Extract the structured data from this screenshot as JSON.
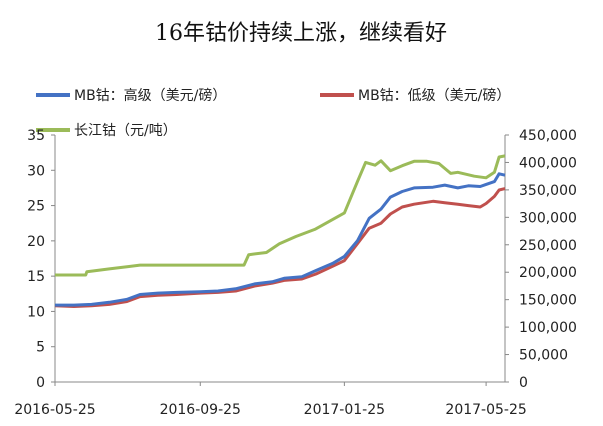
{
  "chart_data": {
    "type": "line",
    "title": "16年钴价持续上涨，继续看好",
    "x_ticks": [
      "2016-05-25",
      "2016-09-25",
      "2017-01-25",
      "2017-05-25"
    ],
    "y_left": {
      "min": 0,
      "max": 35,
      "ticks": [
        "0",
        "5",
        "10",
        "15",
        "20",
        "25",
        "30",
        "35"
      ]
    },
    "y_right": {
      "min": 0,
      "max": 450000,
      "ticks": [
        "0",
        "50,000",
        "100,000",
        "150,000",
        "200,000",
        "250,000",
        "300,000",
        "350,000",
        "400,000",
        "450,000"
      ]
    },
    "legend_placement": "top-left",
    "series": [
      {
        "name": "MB钴：高级（美元/磅）",
        "axis": "left",
        "color": "#4472C4",
        "points": [
          [
            "2016-05-25",
            10.9
          ],
          [
            "2016-06-10",
            10.9
          ],
          [
            "2016-06-25",
            11.0
          ],
          [
            "2016-07-10",
            11.3
          ],
          [
            "2016-07-25",
            11.7
          ],
          [
            "2016-08-05",
            12.4
          ],
          [
            "2016-08-20",
            12.6
          ],
          [
            "2016-09-05",
            12.7
          ],
          [
            "2016-09-25",
            12.8
          ],
          [
            "2016-10-10",
            12.9
          ],
          [
            "2016-10-25",
            13.2
          ],
          [
            "2016-11-10",
            13.9
          ],
          [
            "2016-11-25",
            14.2
          ],
          [
            "2016-12-05",
            14.7
          ],
          [
            "2016-12-20",
            14.9
          ],
          [
            "2017-01-01",
            15.8
          ],
          [
            "2017-01-15",
            16.8
          ],
          [
            "2017-01-25",
            17.8
          ],
          [
            "2017-02-05",
            20.0
          ],
          [
            "2017-02-15",
            23.2
          ],
          [
            "2017-02-25",
            24.5
          ],
          [
            "2017-03-05",
            26.2
          ],
          [
            "2017-03-15",
            27.0
          ],
          [
            "2017-03-25",
            27.5
          ],
          [
            "2017-04-10",
            27.6
          ],
          [
            "2017-04-20",
            27.9
          ],
          [
            "2017-05-01",
            27.5
          ],
          [
            "2017-05-10",
            27.8
          ],
          [
            "2017-05-20",
            27.7
          ],
          [
            "2017-05-25",
            28.0
          ],
          [
            "2017-06-01",
            28.4
          ],
          [
            "2017-06-05",
            29.5
          ],
          [
            "2017-06-10",
            29.3
          ]
        ]
      },
      {
        "name": "MB钴：低级（美元/磅）",
        "axis": "left",
        "color": "#C0504D",
        "points": [
          [
            "2016-05-25",
            10.8
          ],
          [
            "2016-06-10",
            10.7
          ],
          [
            "2016-06-25",
            10.8
          ],
          [
            "2016-07-10",
            11.0
          ],
          [
            "2016-07-25",
            11.4
          ],
          [
            "2016-08-05",
            12.1
          ],
          [
            "2016-08-20",
            12.3
          ],
          [
            "2016-09-05",
            12.4
          ],
          [
            "2016-09-25",
            12.6
          ],
          [
            "2016-10-10",
            12.7
          ],
          [
            "2016-10-25",
            12.9
          ],
          [
            "2016-11-10",
            13.6
          ],
          [
            "2016-11-25",
            14.0
          ],
          [
            "2016-12-05",
            14.4
          ],
          [
            "2016-12-20",
            14.6
          ],
          [
            "2017-01-01",
            15.3
          ],
          [
            "2017-01-15",
            16.4
          ],
          [
            "2017-01-25",
            17.2
          ],
          [
            "2017-02-05",
            19.6
          ],
          [
            "2017-02-15",
            21.8
          ],
          [
            "2017-02-25",
            22.5
          ],
          [
            "2017-03-05",
            23.8
          ],
          [
            "2017-03-15",
            24.8
          ],
          [
            "2017-03-25",
            25.2
          ],
          [
            "2017-04-10",
            25.6
          ],
          [
            "2017-04-20",
            25.4
          ],
          [
            "2017-05-01",
            25.2
          ],
          [
            "2017-05-10",
            25.0
          ],
          [
            "2017-05-20",
            24.8
          ],
          [
            "2017-05-25",
            25.3
          ],
          [
            "2017-06-01",
            26.3
          ],
          [
            "2017-06-05",
            27.2
          ],
          [
            "2017-06-10",
            27.4
          ]
        ]
      },
      {
        "name": "长江钴（元/吨）",
        "axis": "right",
        "color": "#9BBB59",
        "points": [
          [
            "2016-05-25",
            195000
          ],
          [
            "2016-06-20",
            195000
          ],
          [
            "2016-06-21",
            201000
          ],
          [
            "2016-07-10",
            206000
          ],
          [
            "2016-07-25",
            210000
          ],
          [
            "2016-08-05",
            213000
          ],
          [
            "2016-08-20",
            213000
          ],
          [
            "2016-09-25",
            213000
          ],
          [
            "2016-10-20",
            213000
          ],
          [
            "2016-11-01",
            213000
          ],
          [
            "2016-11-05",
            232000
          ],
          [
            "2016-11-20",
            236000
          ],
          [
            "2016-12-01",
            252000
          ],
          [
            "2016-12-15",
            265000
          ],
          [
            "2016-12-31",
            278000
          ],
          [
            "2017-01-10",
            290000
          ],
          [
            "2017-01-25",
            308000
          ],
          [
            "2017-02-05",
            365000
          ],
          [
            "2017-02-12",
            400000
          ],
          [
            "2017-02-20",
            395000
          ],
          [
            "2017-02-25",
            403000
          ],
          [
            "2017-03-05",
            385000
          ],
          [
            "2017-03-15",
            394000
          ],
          [
            "2017-03-25",
            402000
          ],
          [
            "2017-04-05",
            402000
          ],
          [
            "2017-04-15",
            398000
          ],
          [
            "2017-04-25",
            380000
          ],
          [
            "2017-05-01",
            382000
          ],
          [
            "2017-05-15",
            375000
          ],
          [
            "2017-05-25",
            372000
          ],
          [
            "2017-06-01",
            382000
          ],
          [
            "2017-06-05",
            410000
          ],
          [
            "2017-06-10",
            412000
          ]
        ]
      }
    ]
  }
}
